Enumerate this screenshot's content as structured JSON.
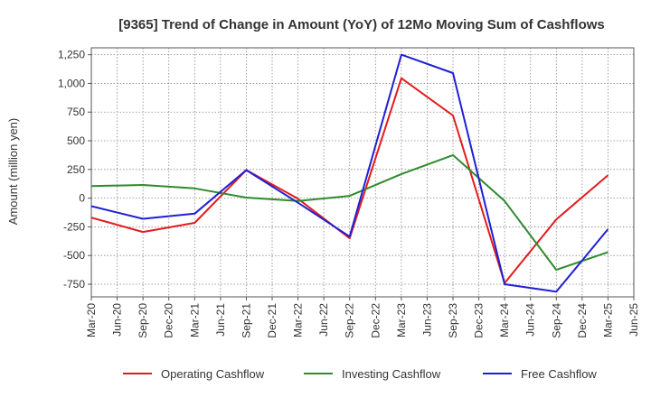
{
  "chart_data": {
    "type": "line",
    "title": "[9365]  Trend of Change in Amount (YoY) of 12Mo Moving Sum of Cashflows",
    "xlabel": "",
    "ylabel": "Amount (million yen)",
    "categories": [
      "Mar-20",
      "Jun-20",
      "Sep-20",
      "Dec-20",
      "Mar-21",
      "Jun-21",
      "Sep-21",
      "Dec-21",
      "Mar-22",
      "Jun-22",
      "Sep-22",
      "Dec-22",
      "Mar-23",
      "Jun-23",
      "Sep-23",
      "Dec-23",
      "Mar-24",
      "Jun-24",
      "Sep-24",
      "Dec-24",
      "Mar-25",
      "Jun-25"
    ],
    "yticks": [
      -750,
      -500,
      -250,
      0,
      250,
      500,
      750,
      1000,
      1250
    ],
    "ytick_labels": [
      "-750",
      "-500",
      "-250",
      "0",
      "250",
      "500",
      "750",
      "1,000",
      "1,250"
    ],
    "ylim": [
      -860,
      1310
    ],
    "grid": true,
    "legend_position": "bottom",
    "series": [
      {
        "name": "Operating Cashflow",
        "color": "#e41a1c",
        "points": [
          [
            0,
            -170
          ],
          [
            2,
            -295
          ],
          [
            4,
            -215
          ],
          [
            6,
            245
          ],
          [
            8,
            -5
          ],
          [
            10,
            -350
          ],
          [
            12,
            1045
          ],
          [
            14,
            720
          ],
          [
            16,
            -740
          ],
          [
            18,
            -185
          ],
          [
            20,
            200
          ]
        ]
      },
      {
        "name": "Investing Cashflow",
        "color": "#2e8b2e",
        "points": [
          [
            0,
            105
          ],
          [
            2,
            115
          ],
          [
            4,
            85
          ],
          [
            6,
            5
          ],
          [
            8,
            -25
          ],
          [
            10,
            20
          ],
          [
            12,
            210
          ],
          [
            14,
            375
          ],
          [
            16,
            -25
          ],
          [
            18,
            -625
          ],
          [
            20,
            -470
          ]
        ]
      },
      {
        "name": "Free Cashflow",
        "color": "#1f1fd6",
        "points": [
          [
            0,
            -70
          ],
          [
            2,
            -180
          ],
          [
            4,
            -135
          ],
          [
            6,
            245
          ],
          [
            8,
            -40
          ],
          [
            10,
            -335
          ],
          [
            12,
            1250
          ],
          [
            14,
            1090
          ],
          [
            16,
            -750
          ],
          [
            18,
            -815
          ],
          [
            20,
            -270
          ]
        ]
      }
    ]
  }
}
